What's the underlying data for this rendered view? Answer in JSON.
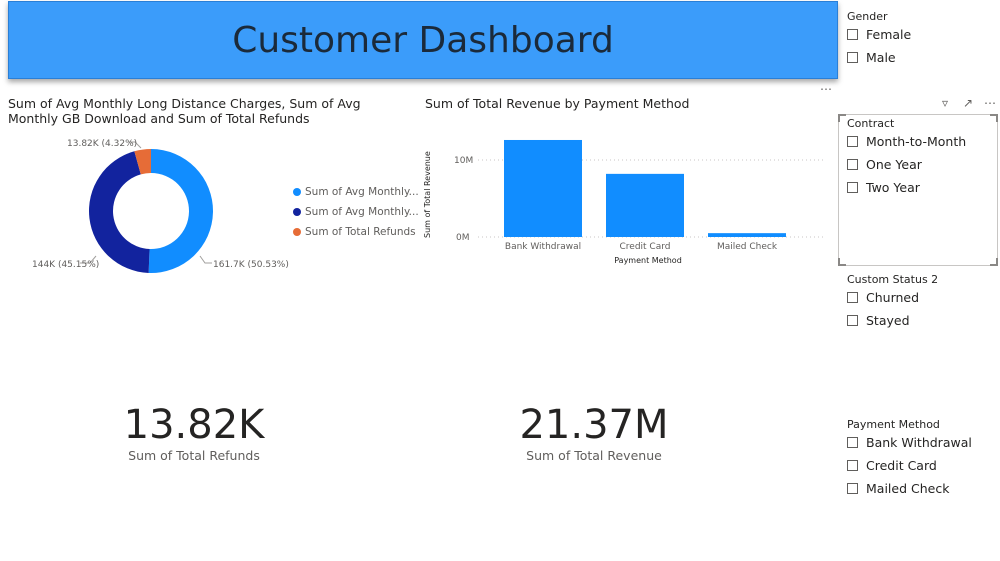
{
  "banner": {
    "title": "Customer Dashboard"
  },
  "donut": {
    "title": "Sum of Avg Monthly Long Distance Charges, Sum of Avg Monthly GB Download and Sum of Total Refunds",
    "legend": [
      {
        "label": "Sum of Avg Monthly...",
        "color": "#118dff"
      },
      {
        "label": "Sum of Avg Monthly...",
        "color": "#12239e"
      },
      {
        "label": "Sum of Total Refunds",
        "color": "#e66c37"
      }
    ],
    "labels": {
      "slice_a": "161.7K (50.53%)",
      "slice_b": "144K (45.15%)",
      "slice_c": "13.82K (4.32%)"
    }
  },
  "bar_chart": {
    "title": "Sum of Total Revenue by Payment Method",
    "ylabel": "Sum of Total Revenue",
    "xlabel": "Payment Method",
    "ticks": [
      "0M",
      "10M"
    ]
  },
  "chart_data": [
    {
      "type": "pie",
      "categories": [
        "Sum of Avg Monthly Long Distance Charges",
        "Sum of Avg Monthly GB Download",
        "Sum of Total Refunds"
      ],
      "values": [
        161700,
        144000,
        13820
      ],
      "percent": [
        50.53,
        45.15,
        4.32
      ],
      "colors": [
        "#118dff",
        "#12239e",
        "#e66c37"
      ],
      "legend": "right"
    },
    {
      "type": "bar",
      "categories": [
        "Bank Withdrawal",
        "Credit Card",
        "Mailed Check"
      ],
      "values": [
        12.6,
        8.2,
        0.5
      ],
      "ylim": [
        0,
        14
      ],
      "color": "#118dff",
      "grid": true
    }
  ],
  "kpis": [
    {
      "value": "13.82K",
      "label": "Sum of Total Refunds"
    },
    {
      "value": "21.37M",
      "label": "Sum of Total Revenue"
    }
  ],
  "slicers": {
    "gender": {
      "title": "Gender",
      "items": [
        "Female",
        "Male"
      ]
    },
    "contract": {
      "title": "Contract",
      "items": [
        "Month-to-Month",
        "One Year",
        "Two Year"
      ]
    },
    "status": {
      "title": "Custom Status 2",
      "items": [
        "Churned",
        "Stayed"
      ]
    },
    "payment": {
      "title": "Payment Method",
      "items": [
        "Bank Withdrawal",
        "Credit Card",
        "Mailed Check"
      ]
    }
  },
  "icons": {
    "more": "more-options-icon",
    "filter": "filter-icon",
    "focus": "focus-mode-icon"
  }
}
